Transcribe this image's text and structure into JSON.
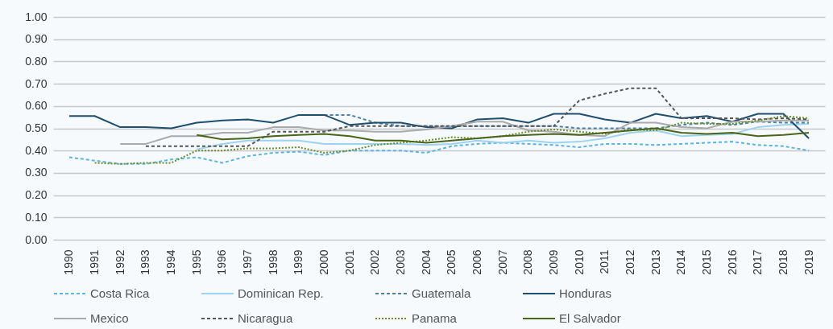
{
  "chart_data": {
    "type": "line",
    "categories": [
      "1990",
      "1991",
      "1992",
      "1993",
      "1994",
      "1995",
      "1996",
      "1997",
      "1998",
      "1999",
      "2000",
      "2001",
      "2002",
      "2003",
      "2004",
      "2005",
      "2006",
      "2007",
      "2008",
      "2009",
      "2010",
      "2011",
      "2012",
      "2013",
      "2014",
      "2015",
      "2016",
      "2017",
      "2018",
      "2019"
    ],
    "ylim": [
      0,
      1
    ],
    "yticks": [
      {
        "value": 0,
        "label": "0.00"
      },
      {
        "value": 0.1,
        "label": "0.10"
      },
      {
        "value": 0.2,
        "label": "0.20"
      },
      {
        "value": 0.3,
        "label": "0.30"
      },
      {
        "value": 0.4,
        "label": "0.40"
      },
      {
        "value": 0.5,
        "label": "0.50"
      },
      {
        "value": 0.6,
        "label": "0.60"
      },
      {
        "value": 0.7,
        "label": "0.70"
      },
      {
        "value": 0.8,
        "label": "0.80"
      },
      {
        "value": 0.9,
        "label": "0.90"
      },
      {
        "value": 1,
        "label": "1.00"
      }
    ],
    "grid": "y",
    "legend": "bottom",
    "marker": "none",
    "series": [
      {
        "name": "Costa Rica",
        "color": "#5ab4e5",
        "line_style": "dashed",
        "values": [
          0.37,
          0.355,
          0.34,
          0.34,
          0.36,
          0.37,
          0.345,
          0.375,
          0.39,
          0.395,
          0.38,
          0.4,
          0.4,
          0.4,
          0.39,
          0.42,
          0.43,
          0.435,
          0.43,
          0.425,
          0.415,
          0.43,
          0.43,
          0.425,
          0.43,
          0.435,
          0.44,
          0.425,
          0.42,
          0.4
        ]
      },
      {
        "name": "Dominican Rep.",
        "color": "#9dd3f0",
        "line_style": "solid",
        "values": [
          null,
          null,
          null,
          null,
          null,
          0.405,
          0.43,
          0.445,
          0.445,
          0.445,
          0.43,
          0.43,
          0.43,
          0.43,
          0.425,
          0.43,
          0.445,
          0.435,
          0.445,
          0.435,
          0.44,
          0.455,
          0.48,
          0.49,
          0.465,
          0.47,
          0.475,
          0.505,
          0.515,
          0.52
        ]
      },
      {
        "name": "Guatemala",
        "color": "#4a7fa8",
        "line_style": "dashed",
        "values": [
          null,
          null,
          null,
          null,
          null,
          null,
          null,
          null,
          null,
          null,
          0.56,
          0.56,
          0.525,
          0.51,
          0.51,
          0.51,
          0.51,
          0.51,
          0.51,
          0.51,
          0.5,
          0.5,
          0.5,
          0.5,
          0.515,
          0.525,
          0.515,
          0.53,
          0.525,
          0.525
        ]
      },
      {
        "name": "Honduras",
        "color": "#1f4e6e",
        "line_style": "solid",
        "values": [
          0.555,
          0.555,
          0.505,
          0.505,
          0.5,
          0.525,
          0.535,
          0.54,
          0.525,
          0.56,
          0.56,
          0.515,
          0.525,
          0.525,
          0.505,
          0.5,
          0.54,
          0.545,
          0.525,
          0.565,
          0.565,
          0.54,
          0.525,
          0.565,
          0.545,
          0.555,
          0.53,
          0.565,
          0.565,
          0.455
        ]
      },
      {
        "name": "Mexico",
        "color": "#aaaaaa",
        "line_style": "solid",
        "values": [
          null,
          null,
          0.43,
          0.43,
          0.465,
          0.465,
          0.48,
          0.48,
          0.505,
          0.505,
          0.49,
          0.49,
          0.485,
          0.485,
          0.495,
          0.51,
          0.53,
          0.53,
          0.49,
          0.485,
          0.47,
          0.465,
          0.525,
          0.525,
          0.505,
          0.5,
          0.53,
          0.53,
          0.535,
          0.535
        ]
      },
      {
        "name": "Nicaragua",
        "color": "#555555",
        "line_style": "dashed",
        "values": [
          null,
          null,
          null,
          0.42,
          0.42,
          0.42,
          0.42,
          0.42,
          0.485,
          0.485,
          0.485,
          0.51,
          0.51,
          0.51,
          0.51,
          0.51,
          0.51,
          0.51,
          0.51,
          0.51,
          0.625,
          0.655,
          0.68,
          0.68,
          0.545,
          0.545,
          0.545,
          0.54,
          0.545,
          0.54
        ]
      },
      {
        "name": "Panama",
        "color": "#6a8f2a",
        "line_style": "dotted",
        "values": [
          null,
          0.345,
          0.34,
          0.345,
          0.345,
          0.4,
          0.4,
          0.41,
          0.41,
          0.415,
          0.39,
          0.4,
          0.425,
          0.435,
          0.445,
          0.46,
          0.455,
          0.465,
          0.485,
          0.495,
          0.485,
          0.475,
          0.495,
          0.49,
          0.525,
          0.52,
          0.52,
          0.535,
          0.555,
          0.545
        ]
      },
      {
        "name": "El Salvador",
        "color": "#4a6418",
        "line_style": "solid",
        "values": [
          null,
          null,
          null,
          null,
          null,
          0.47,
          0.45,
          0.455,
          0.465,
          0.47,
          0.475,
          0.465,
          0.445,
          0.445,
          0.435,
          0.445,
          0.455,
          0.465,
          0.47,
          0.475,
          0.47,
          0.48,
          0.49,
          0.5,
          0.48,
          0.475,
          0.48,
          0.465,
          0.47,
          0.48
        ]
      }
    ]
  }
}
